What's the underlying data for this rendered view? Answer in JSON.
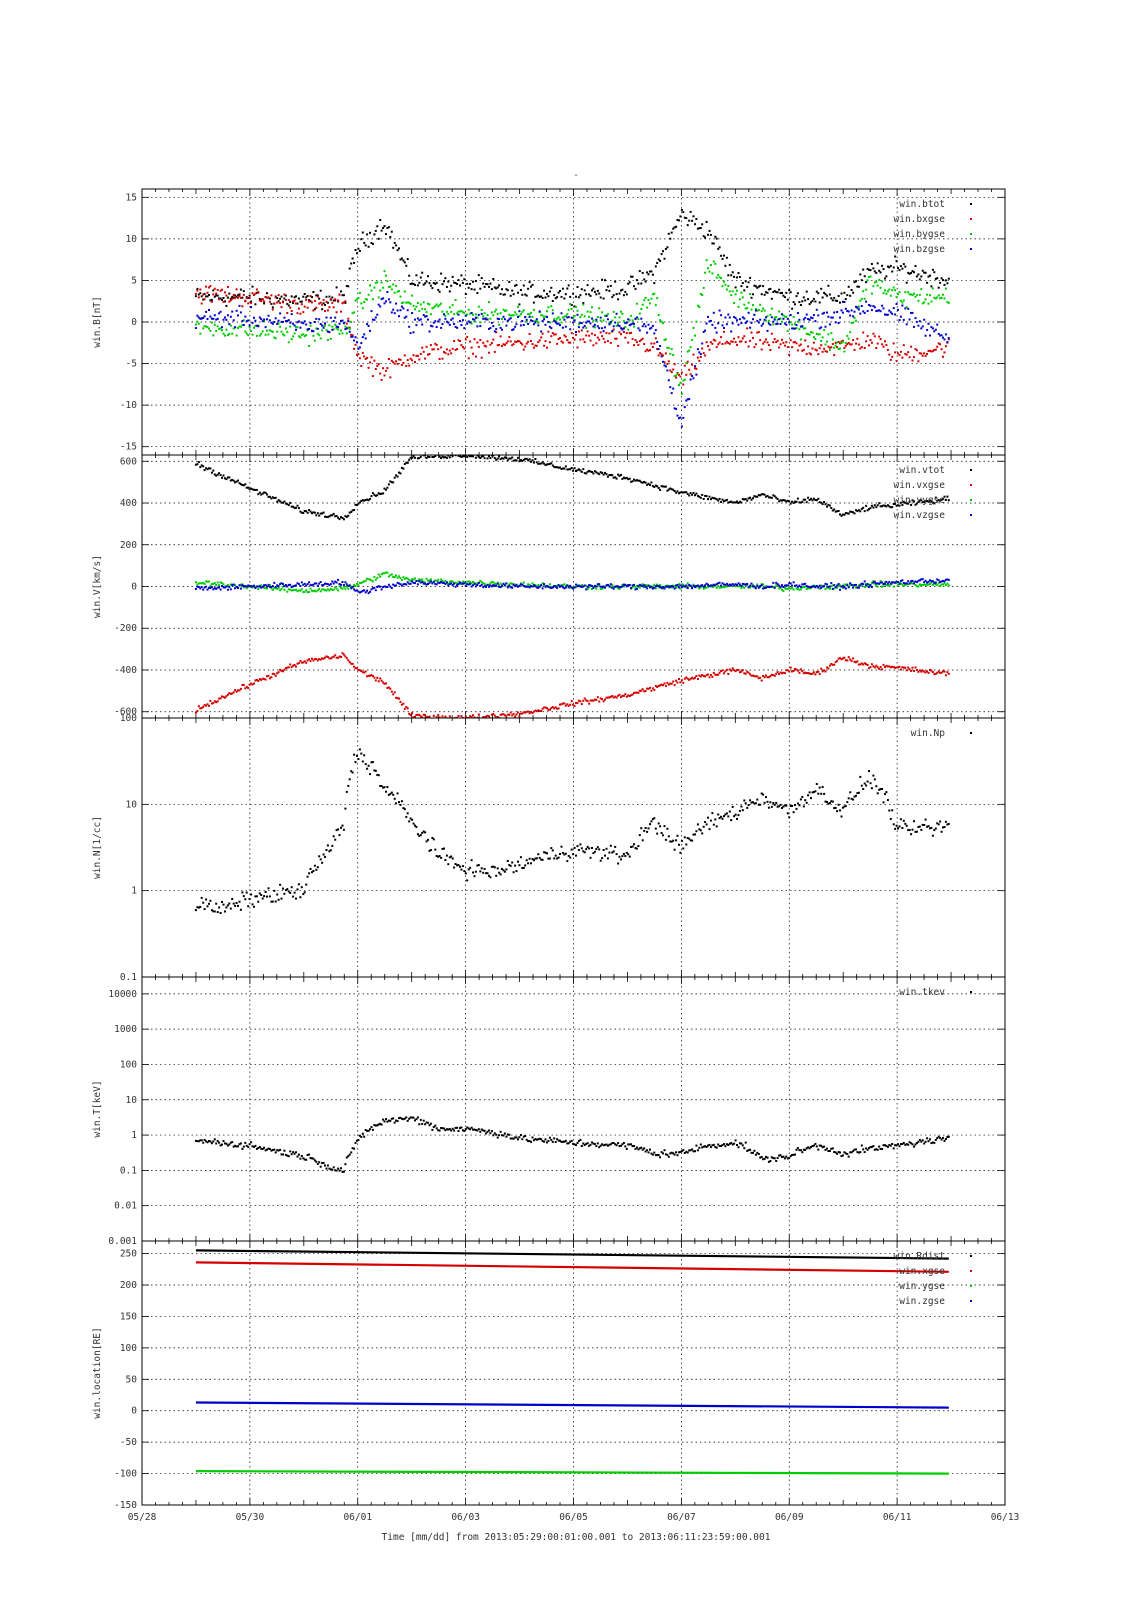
{
  "figure": {
    "top_mark": "-",
    "x_axis_caption": "Time [mm/dd]  from 2013:05:29:00:01:00.001  to  2013:06:11:23:59:00.001",
    "x_ticks": [
      "05/28",
      "05/30",
      "06/01",
      "06/03",
      "06/05",
      "06/07",
      "06/09",
      "06/11",
      "06/13"
    ],
    "colors": {
      "black": "#000000",
      "red": "#d40000",
      "green": "#00cc00",
      "blue": "#0000cc",
      "grid": "#000000"
    }
  },
  "chart_data": [
    {
      "type": "scatter",
      "panel": "magnetic field",
      "ylabel": "win.B[nT]",
      "ylim": [
        -16,
        16
      ],
      "scale": "linear",
      "y_ticks": [
        -15,
        -10,
        -5,
        0,
        5,
        10,
        15
      ],
      "x_range_days": [
        "05/28",
        "06/13"
      ],
      "grid": true,
      "legend_placement": "top-right",
      "series": [
        {
          "name": "win.btot",
          "color": "#000000",
          "x": [
            "05/29",
            "05/30",
            "05/31",
            "05/31 18h",
            "06/01",
            "06/01 12h",
            "06/02",
            "06/03",
            "06/04",
            "06/05",
            "06/06",
            "06/06 12h",
            "06/07",
            "06/07 12h",
            "06/08",
            "06/09",
            "06/10",
            "06/10 12h",
            "06/11",
            "06/11 23h"
          ],
          "values": [
            3,
            3,
            2.5,
            3,
            9,
            12,
            5,
            4.5,
            3.5,
            3.5,
            4,
            6,
            13,
            11,
            5,
            3,
            3,
            6,
            6.5,
            5
          ]
        },
        {
          "name": "win.bxgse",
          "color": "#d40000",
          "x": [
            "05/29",
            "05/30",
            "05/31",
            "05/31 18h",
            "06/01",
            "06/01 12h",
            "06/02",
            "06/03",
            "06/04",
            "06/05",
            "06/06",
            "06/06 12h",
            "06/07",
            "06/07 12h",
            "06/08",
            "06/09",
            "06/10",
            "06/10 12h",
            "06/11",
            "06/11 23h"
          ],
          "values": [
            3.5,
            3,
            2,
            2,
            -4,
            -6,
            -4,
            -3,
            -2.5,
            -2,
            -2,
            -3,
            -7,
            -3,
            -2,
            -3,
            -3,
            -2,
            -4,
            -3
          ]
        },
        {
          "name": "win.bygse",
          "color": "#00cc00",
          "x": [
            "05/29",
            "05/30",
            "05/31",
            "05/31 18h",
            "06/01",
            "06/01 12h",
            "06/02",
            "06/03",
            "06/04",
            "06/05",
            "06/06",
            "06/06 12h",
            "06/07",
            "06/07 12h",
            "06/08",
            "06/09",
            "06/10",
            "06/10 12h",
            "06/11",
            "06/11 23h"
          ],
          "values": [
            -0.5,
            -1,
            -1.5,
            -1,
            2,
            5,
            2,
            1,
            1,
            1,
            0,
            3,
            -8,
            7,
            3,
            0,
            -3,
            5,
            3,
            3
          ]
        },
        {
          "name": "win.bzgse",
          "color": "#0000cc",
          "x": [
            "05/29",
            "05/30",
            "05/31",
            "05/31 18h",
            "06/01",
            "06/01 12h",
            "06/02",
            "06/03",
            "06/04",
            "06/05",
            "06/06",
            "06/06 12h",
            "06/07",
            "06/07 12h",
            "06/08",
            "06/09",
            "06/10",
            "06/10 12h",
            "06/11",
            "06/11 23h"
          ],
          "values": [
            0.5,
            0.5,
            -0.5,
            0,
            -3,
            3,
            0,
            0,
            0,
            0,
            0,
            -1,
            -12,
            0,
            0,
            0,
            1,
            2,
            1,
            -2
          ]
        }
      ]
    },
    {
      "type": "scatter",
      "panel": "velocity",
      "ylabel": "win.V[km/s]",
      "ylim": [
        -630,
        630
      ],
      "scale": "linear",
      "y_ticks": [
        -600,
        -400,
        -200,
        0,
        200,
        400,
        600
      ],
      "grid": true,
      "legend_placement": "top-right",
      "series": [
        {
          "name": "win.vtot",
          "color": "#000000",
          "x": [
            "05/29",
            "05/30",
            "05/31",
            "05/31 18h",
            "06/01",
            "06/01 12h",
            "06/02",
            "06/03",
            "06/04",
            "06/05",
            "06/06",
            "06/07",
            "06/08",
            "06/08 12h",
            "06/09",
            "06/09 12h",
            "06/10",
            "06/10 12h",
            "06/11",
            "06/11 23h"
          ],
          "values": [
            590,
            470,
            360,
            330,
            400,
            460,
            620,
            630,
            610,
            560,
            520,
            450,
            400,
            440,
            400,
            420,
            340,
            380,
            390,
            420
          ]
        },
        {
          "name": "win.vxgse",
          "color": "#d40000",
          "x": [
            "05/29",
            "05/30",
            "05/31",
            "05/31 18h",
            "06/01",
            "06/01 12h",
            "06/02",
            "06/03",
            "06/04",
            "06/05",
            "06/06",
            "06/07",
            "06/08",
            "06/08 12h",
            "06/09",
            "06/09 12h",
            "06/10",
            "06/10 12h",
            "06/11",
            "06/11 23h"
          ],
          "values": [
            -590,
            -470,
            -360,
            -330,
            -400,
            -460,
            -620,
            -630,
            -610,
            -560,
            -520,
            -450,
            -400,
            -440,
            -400,
            -420,
            -340,
            -380,
            -390,
            -420
          ]
        },
        {
          "name": "win.vygse",
          "color": "#00cc00",
          "x": [
            "05/29",
            "05/30",
            "05/31",
            "05/31 18h",
            "06/01",
            "06/01 12h",
            "06/02",
            "06/03",
            "06/04",
            "06/05",
            "06/06",
            "06/07",
            "06/08",
            "06/08 12h",
            "06/09",
            "06/09 12h",
            "06/10",
            "06/10 12h",
            "06/11",
            "06/11 23h"
          ],
          "values": [
            20,
            0,
            -20,
            -10,
            10,
            60,
            30,
            20,
            10,
            0,
            0,
            0,
            0,
            0,
            -10,
            0,
            0,
            10,
            10,
            10
          ]
        },
        {
          "name": "win.vzgse",
          "color": "#0000cc",
          "x": [
            "05/29",
            "05/30",
            "05/31",
            "05/31 18h",
            "06/01",
            "06/01 12h",
            "06/02",
            "06/03",
            "06/04",
            "06/05",
            "06/06",
            "06/07",
            "06/08",
            "06/08 12h",
            "06/09",
            "06/09 12h",
            "06/10",
            "06/10 12h",
            "06/11",
            "06/11 23h"
          ],
          "values": [
            -10,
            0,
            10,
            20,
            -30,
            0,
            20,
            10,
            0,
            0,
            0,
            0,
            10,
            0,
            10,
            0,
            0,
            10,
            20,
            30
          ]
        }
      ]
    },
    {
      "type": "scatter",
      "panel": "density",
      "ylabel": "win.N[1/cc]",
      "ylim": [
        0.1,
        100
      ],
      "scale": "log",
      "y_ticks": [
        0.1,
        1,
        10,
        100
      ],
      "grid": true,
      "legend_placement": "top-right",
      "series": [
        {
          "name": "win.Np",
          "color": "#000000",
          "x": [
            "05/29",
            "05/29 12h",
            "05/30",
            "05/30 12h",
            "05/31",
            "05/31 12h",
            "05/31 18h",
            "06/01",
            "06/01 12h",
            "06/02",
            "06/02 12h",
            "06/03",
            "06/03 12h",
            "06/04",
            "06/05",
            "06/06",
            "06/06 12h",
            "06/07",
            "06/07 12h",
            "06/08",
            "06/08 12h",
            "06/09",
            "06/09 12h",
            "06/10",
            "06/10 12h",
            "06/11",
            "06/11 23h"
          ],
          "values": [
            0.7,
            0.6,
            0.8,
            0.9,
            1.0,
            3,
            6,
            40,
            15,
            6,
            2.5,
            1.8,
            1.6,
            2,
            3,
            2.5,
            6,
            3,
            6,
            8,
            12,
            8,
            15,
            8,
            20,
            5,
            5.5
          ]
        }
      ]
    },
    {
      "type": "scatter",
      "panel": "temperature",
      "ylabel": "win.T[keV]",
      "ylim": [
        0.001,
        30000
      ],
      "scale": "log",
      "y_ticks": [
        "0.001",
        "0.01",
        "0.1",
        "1",
        "10",
        "100",
        "1000",
        "10000"
      ],
      "grid": true,
      "legend_placement": "top-right",
      "series": [
        {
          "name": "win.tkev",
          "color": "#000000",
          "x": [
            "05/29",
            "05/29 12h",
            "05/30",
            "05/30 12h",
            "05/31",
            "05/31 12h",
            "05/31 18h",
            "06/01",
            "06/01 12h",
            "06/02",
            "06/02 12h",
            "06/03",
            "06/03 12h",
            "06/04",
            "06/05",
            "06/06",
            "06/06 12h",
            "06/07",
            "06/07 12h",
            "06/08",
            "06/08 12h",
            "06/09",
            "06/09 12h",
            "06/10",
            "06/10 12h",
            "06/11",
            "06/11 23h"
          ],
          "values": [
            0.7,
            0.6,
            0.5,
            0.35,
            0.25,
            0.12,
            0.1,
            0.6,
            2.5,
            3,
            1.5,
            1.5,
            1.2,
            0.8,
            0.6,
            0.5,
            0.3,
            0.3,
            0.5,
            0.6,
            0.2,
            0.25,
            0.5,
            0.3,
            0.4,
            0.5,
            0.8
          ]
        }
      ]
    },
    {
      "type": "line",
      "panel": "location",
      "ylabel": "win.location[RE]",
      "ylim": [
        -150,
        270
      ],
      "scale": "linear",
      "y_ticks": [
        -150,
        -100,
        -50,
        0,
        50,
        100,
        150,
        200,
        250
      ],
      "grid": true,
      "legend_placement": "top-right",
      "series": [
        {
          "name": "win.Rdist",
          "color": "#000000",
          "x": [
            "05/29",
            "06/11 23h"
          ],
          "values": [
            255,
            242
          ]
        },
        {
          "name": "win.xgse",
          "color": "#d40000",
          "x": [
            "05/29",
            "06/11 23h"
          ],
          "values": [
            236,
            221
          ]
        },
        {
          "name": "win.ygse",
          "color": "#00cc00",
          "x": [
            "05/29",
            "06/11 23h"
          ],
          "values": [
            -96,
            -100
          ]
        },
        {
          "name": "win.zgse",
          "color": "#0000cc",
          "x": [
            "05/29",
            "06/11 23h"
          ],
          "values": [
            13,
            5
          ]
        }
      ]
    }
  ]
}
